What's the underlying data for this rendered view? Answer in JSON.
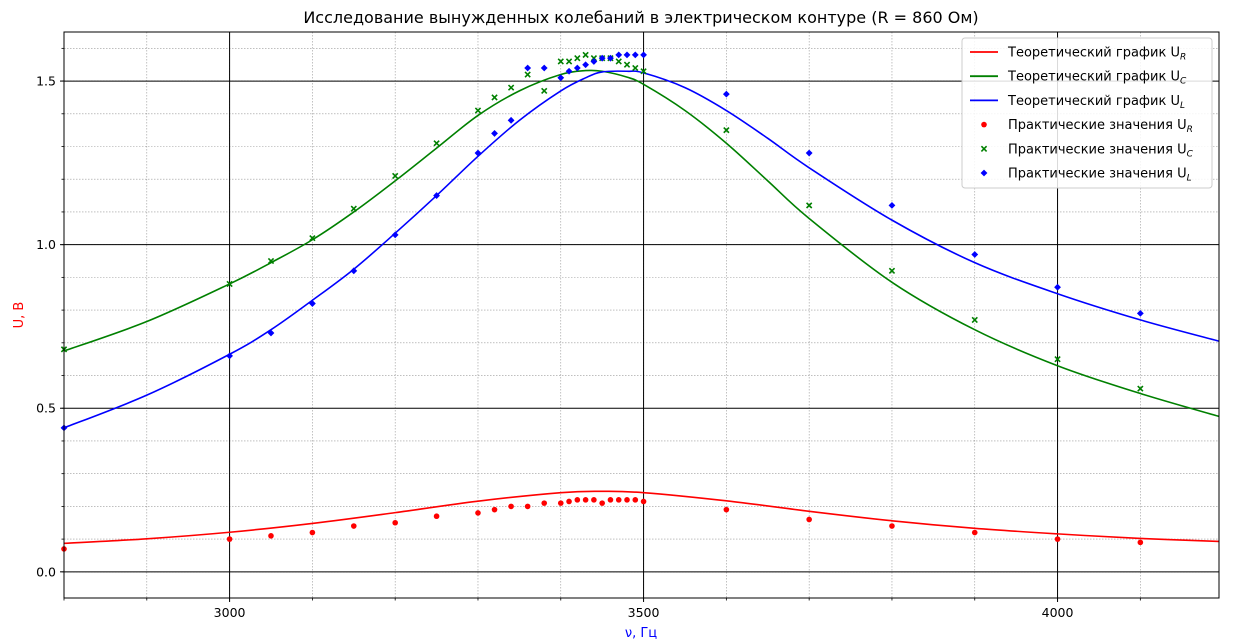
{
  "chart_data": {
    "type": "line",
    "title": "Исследование вынужденных колебаний в электрическом контуре (R = 860 Ом)",
    "xlabel": "ν, Гц",
    "ylabel": "U, В",
    "xlim": [
      2800,
      4195
    ],
    "ylim": [
      -0.08,
      1.65
    ],
    "x_major_ticks": [
      3000,
      3500,
      4000
    ],
    "x_minor_step": 100,
    "y_major_ticks": [
      0.0,
      0.5,
      1.0,
      1.5
    ],
    "y_tick_labels": [
      "0.0",
      "0.5",
      "1.0",
      "1.5"
    ],
    "y_minor_step": 0.1,
    "grid": true,
    "legend_position": "top-right",
    "colors": {
      "ur": "#ff0000",
      "uc": "#008000",
      "ul": "#0000ff"
    },
    "series": [
      {
        "name": "Теоретический график U_R",
        "kind": "line",
        "color": "#ff0000",
        "x": [
          2800,
          2900,
          3000,
          3100,
          3200,
          3300,
          3400,
          3450,
          3500,
          3600,
          3700,
          3800,
          3900,
          4000,
          4100,
          4195
        ],
        "values": [
          0.087,
          0.101,
          0.121,
          0.148,
          0.181,
          0.216,
          0.242,
          0.246,
          0.242,
          0.217,
          0.185,
          0.156,
          0.133,
          0.116,
          0.102,
          0.093
        ]
      },
      {
        "name": "Теоретический график U_C",
        "kind": "line",
        "color": "#008000",
        "x": [
          2800,
          2900,
          3000,
          3050,
          3100,
          3150,
          3200,
          3250,
          3300,
          3350,
          3400,
          3430,
          3450,
          3480,
          3500,
          3550,
          3600,
          3650,
          3700,
          3800,
          3900,
          4000,
          4100,
          4195
        ],
        "values": [
          0.675,
          0.765,
          0.88,
          0.945,
          1.015,
          1.1,
          1.195,
          1.295,
          1.395,
          1.47,
          1.52,
          1.532,
          1.53,
          1.512,
          1.49,
          1.41,
          1.31,
          1.195,
          1.08,
          0.885,
          0.74,
          0.63,
          0.545,
          0.475
        ]
      },
      {
        "name": "Теоретический график U_L",
        "kind": "line",
        "color": "#0000ff",
        "x": [
          2800,
          2900,
          3000,
          3050,
          3100,
          3150,
          3200,
          3250,
          3300,
          3350,
          3400,
          3430,
          3450,
          3480,
          3500,
          3550,
          3600,
          3650,
          3700,
          3800,
          3900,
          4000,
          4100,
          4195
        ],
        "values": [
          0.44,
          0.54,
          0.665,
          0.74,
          0.83,
          0.925,
          1.035,
          1.15,
          1.27,
          1.38,
          1.47,
          1.51,
          1.528,
          1.53,
          1.525,
          1.48,
          1.41,
          1.325,
          1.235,
          1.075,
          0.945,
          0.85,
          0.77,
          0.705
        ]
      },
      {
        "name": "Практические значения U_R",
        "kind": "scatter",
        "marker": "circle",
        "color": "#ff0000",
        "x": [
          2800,
          3000,
          3050,
          3100,
          3150,
          3200,
          3250,
          3300,
          3320,
          3340,
          3360,
          3380,
          3400,
          3410,
          3420,
          3430,
          3440,
          3450,
          3460,
          3470,
          3480,
          3490,
          3500,
          3600,
          3700,
          3800,
          3900,
          4000,
          4100
        ],
        "values": [
          0.07,
          0.1,
          0.11,
          0.12,
          0.14,
          0.15,
          0.17,
          0.18,
          0.19,
          0.2,
          0.2,
          0.21,
          0.21,
          0.215,
          0.22,
          0.22,
          0.22,
          0.21,
          0.22,
          0.22,
          0.22,
          0.22,
          0.215,
          0.19,
          0.16,
          0.14,
          0.12,
          0.1,
          0.09
        ]
      },
      {
        "name": "Практические значения U_C",
        "kind": "scatter",
        "marker": "x",
        "color": "#008000",
        "x": [
          2800,
          3000,
          3050,
          3100,
          3150,
          3200,
          3250,
          3300,
          3320,
          3340,
          3360,
          3380,
          3400,
          3410,
          3420,
          3430,
          3440,
          3450,
          3460,
          3470,
          3480,
          3490,
          3500,
          3600,
          3700,
          3800,
          3900,
          4000,
          4100
        ],
        "values": [
          0.68,
          0.88,
          0.95,
          1.02,
          1.11,
          1.21,
          1.31,
          1.41,
          1.45,
          1.48,
          1.52,
          1.47,
          1.56,
          1.56,
          1.57,
          1.58,
          1.57,
          1.57,
          1.57,
          1.56,
          1.55,
          1.54,
          1.53,
          1.35,
          1.12,
          0.92,
          0.77,
          0.65,
          0.56
        ]
      },
      {
        "name": "Практические значения U_L",
        "kind": "scatter",
        "marker": "diamond",
        "color": "#0000ff",
        "x": [
          2800,
          3000,
          3050,
          3100,
          3150,
          3200,
          3250,
          3300,
          3320,
          3340,
          3360,
          3380,
          3400,
          3410,
          3420,
          3430,
          3440,
          3450,
          3460,
          3470,
          3480,
          3490,
          3500,
          3600,
          3700,
          3800,
          3900,
          4000,
          4100
        ],
        "values": [
          0.44,
          0.66,
          0.73,
          0.82,
          0.92,
          1.03,
          1.15,
          1.28,
          1.34,
          1.38,
          1.54,
          1.54,
          1.51,
          1.53,
          1.54,
          1.55,
          1.56,
          1.57,
          1.57,
          1.58,
          1.58,
          1.58,
          1.58,
          1.46,
          1.28,
          1.12,
          0.97,
          0.87,
          0.79
        ]
      }
    ],
    "legend": [
      {
        "base": "Теоретический график ",
        "sub": "R",
        "kind": "line",
        "color": "#ff0000"
      },
      {
        "base": "Теоретический график ",
        "sub": "C",
        "kind": "line",
        "color": "#008000"
      },
      {
        "base": "Теоретический график ",
        "sub": "L",
        "kind": "line",
        "color": "#0000ff"
      },
      {
        "base": "Практические значения ",
        "sub": "R",
        "kind": "circle",
        "color": "#ff0000"
      },
      {
        "base": "Практические значения ",
        "sub": "C",
        "kind": "x",
        "color": "#008000"
      },
      {
        "base": "Практические значения ",
        "sub": "L",
        "kind": "diamond",
        "color": "#0000ff"
      }
    ]
  }
}
